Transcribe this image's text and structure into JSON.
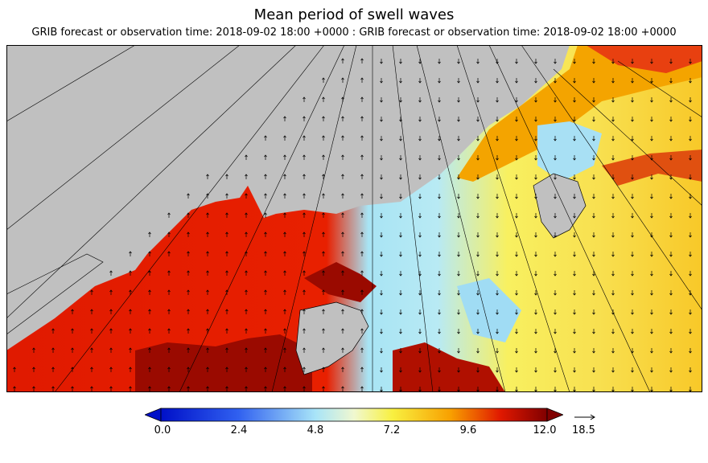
{
  "title": "Mean period of swell waves",
  "subtitle": "GRIB forecast or observation time: 2018-09-02 18:00 +0000 : GRIB forecast or observation time: 2018-09-02 18:00 +0000",
  "colorbar": {
    "ticks": [
      "0.0",
      "2.4",
      "4.8",
      "7.2",
      "9.6",
      "12.0"
    ],
    "min": 0.0,
    "max": 12.0
  },
  "vector_legend": {
    "label": "18.5"
  },
  "colors": {
    "land": "#c0c0c0",
    "frame": "#000000",
    "low": "#1020d0",
    "mid_low": "#a8e4f4",
    "mid": "#f8f060",
    "mid_high": "#f8b400",
    "high": "#e01800",
    "max": "#8a0000"
  }
}
